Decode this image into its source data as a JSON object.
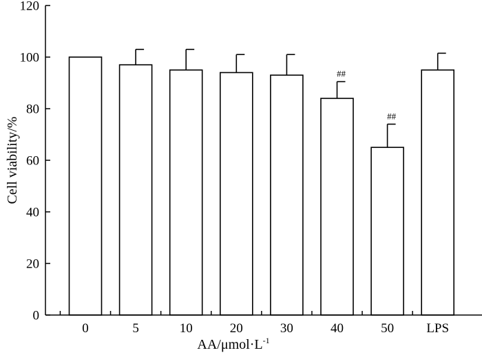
{
  "chart_data": {
    "type": "bar",
    "categories": [
      "0",
      "5",
      "10",
      "20",
      "30",
      "40",
      "50",
      "LPS"
    ],
    "values": [
      100,
      97,
      95,
      94,
      93,
      84,
      65,
      95
    ],
    "errors": [
      0,
      6,
      8,
      7,
      8,
      6.5,
      9,
      6.5
    ],
    "annotations": [
      "",
      "",
      "",
      "",
      "",
      "##",
      "##",
      ""
    ],
    "ylabel": "Cell viability/%",
    "xlabel": {
      "main": "AA/μmol·L",
      "sup": "-1"
    },
    "ylim": [
      0,
      120
    ],
    "yticks": [
      0,
      20,
      40,
      60,
      80,
      100,
      120
    ],
    "grid": false,
    "legend": "none"
  }
}
